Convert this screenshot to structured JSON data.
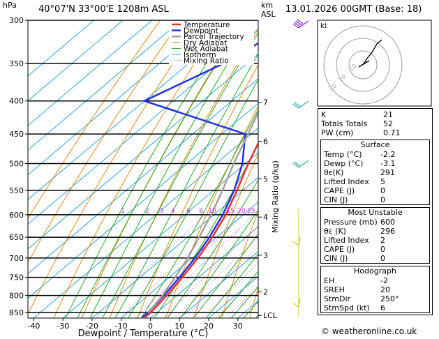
{
  "header": {
    "hpa_label": "hPa",
    "location": "40°07'N 33°00'E 1208m ASL",
    "km_label": "km",
    "asl_label": "ASL",
    "datetime": "13.01.2026 00GMT (Base: 18)"
  },
  "chart_data": {
    "type": "line",
    "pressure_levels": [
      300,
      350,
      400,
      450,
      500,
      550,
      600,
      650,
      700,
      750,
      800,
      850
    ],
    "x_ticks": [
      -40,
      -30,
      -20,
      -10,
      0,
      10,
      20,
      30
    ],
    "xlim": [
      -42,
      37
    ],
    "xlabel": "Dewpoint / Temperature (°C)",
    "ylabel_right": "Mixing Ratio (g/kg)",
    "km_ticks": [
      {
        "km": "7",
        "p": 402
      },
      {
        "km": "6",
        "p": 462
      },
      {
        "km": "5",
        "p": 528
      },
      {
        "km": "4",
        "p": 605
      },
      {
        "km": "3",
        "p": 693
      },
      {
        "km": "2",
        "p": 790
      },
      {
        "km": "LCL",
        "p": 859
      }
    ],
    "mixing_ratio_labels": [
      "1",
      "2",
      "3",
      "4",
      "6",
      "8",
      "10",
      "15",
      "20",
      "25"
    ],
    "series": [
      {
        "name": "Temperature",
        "color": "#e83030",
        "points": [
          [
            -57,
            300
          ],
          [
            -50,
            350
          ],
          [
            -43,
            400
          ],
          [
            -36,
            450
          ],
          [
            -29,
            500
          ],
          [
            -22,
            550
          ],
          [
            -16,
            600
          ],
          [
            -11.5,
            650
          ],
          [
            -8,
            700
          ],
          [
            -5.5,
            750
          ],
          [
            -3.5,
            800
          ],
          [
            -2.2,
            850
          ],
          [
            -2.2,
            865
          ]
        ]
      },
      {
        "name": "Dewpoint",
        "color": "#2233dd",
        "points": [
          [
            -70,
            300
          ],
          [
            -78,
            350
          ],
          [
            -90,
            400
          ],
          [
            -42,
            450
          ],
          [
            -31,
            500
          ],
          [
            -23,
            550
          ],
          [
            -17,
            600
          ],
          [
            -12.5,
            650
          ],
          [
            -9,
            700
          ],
          [
            -6.5,
            750
          ],
          [
            -4.5,
            800
          ],
          [
            -3.1,
            850
          ],
          [
            -3.1,
            865
          ]
        ]
      },
      {
        "name": "Parcel Trajectory",
        "color": "#a0a0a0",
        "points": [
          [
            -66,
            300
          ],
          [
            -57,
            350
          ],
          [
            -49,
            400
          ],
          [
            -41,
            450
          ],
          [
            -34,
            500
          ],
          [
            -27,
            550
          ],
          [
            -21,
            600
          ],
          [
            -16,
            650
          ],
          [
            -11.5,
            700
          ],
          [
            -8,
            750
          ],
          [
            -5,
            800
          ],
          [
            -3,
            850
          ]
        ]
      }
    ],
    "legend": [
      {
        "name": "Temperature",
        "color": "#e83030",
        "style": "solid-thick"
      },
      {
        "name": "Dewpoint",
        "color": "#2233dd",
        "style": "solid-thick"
      },
      {
        "name": "Parcel Trajectory",
        "color": "#a0a0a0",
        "style": "solid-thick"
      },
      {
        "name": "Dry Adiabat",
        "color": "#e8890f",
        "style": "solid"
      },
      {
        "name": "Wet Adiabat",
        "color": "#22aa22",
        "style": "solid"
      },
      {
        "name": "Isotherm",
        "color": "#2aa3e0",
        "style": "solid"
      },
      {
        "name": "Mixing Ratio",
        "color": "#cc33cc",
        "style": "dotted"
      }
    ],
    "legend_position": "top-left",
    "wind_barb_colors": [
      "#8822cc",
      "#22aaaa",
      "#22aaaa",
      "#cccc22",
      "#cccc22"
    ]
  },
  "hodograph": {
    "unit": "kt",
    "ring_labels": [
      "10",
      "20",
      "30"
    ]
  },
  "indices": {
    "top": [
      {
        "label": "K",
        "value": "21"
      },
      {
        "label": "Totals Totals",
        "value": "52"
      },
      {
        "label": "PW (cm)",
        "value": "0.71"
      }
    ],
    "surface": {
      "title": "Surface",
      "rows": [
        {
          "label": "Temp (°C)",
          "value": "-2.2"
        },
        {
          "label": "Dewp (°C)",
          "value": "-3.1"
        },
        {
          "label": "θε(K)",
          "value": "291"
        },
        {
          "label": "Lifted Index",
          "value": "5"
        },
        {
          "label": "CAPE (J)",
          "value": "0"
        },
        {
          "label": "CIN (J)",
          "value": "0"
        }
      ]
    },
    "most_unstable": {
      "title": "Most Unstable",
      "rows": [
        {
          "label": "Pressure (mb)",
          "value": "600"
        },
        {
          "label": "θε (K)",
          "value": "296"
        },
        {
          "label": "Lifted Index",
          "value": "2"
        },
        {
          "label": "CAPE (J)",
          "value": "0"
        },
        {
          "label": "CIN (J)",
          "value": "0"
        }
      ]
    },
    "hodograph_params": {
      "title": "Hodograph",
      "rows": [
        {
          "label": "EH",
          "value": "-2"
        },
        {
          "label": "SREH",
          "value": "20"
        },
        {
          "label": "StmDir",
          "value": "250°"
        },
        {
          "label": "StmSpd (kt)",
          "value": "6"
        }
      ]
    }
  },
  "footer": "© weatheronline.co.uk"
}
